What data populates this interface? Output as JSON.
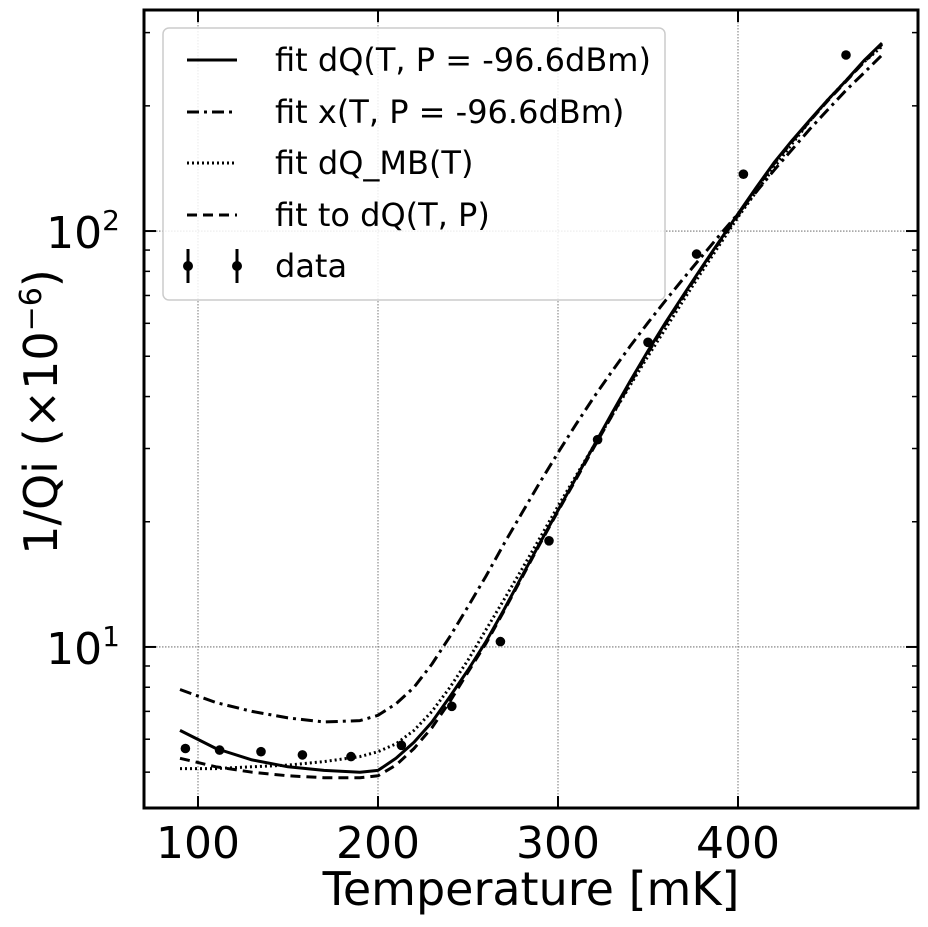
{
  "chart_data": {
    "type": "line",
    "xlabel": "Temperature [mK]",
    "ylabel_main": "1/Qi (×10",
    "ylabel_exp": "−6",
    "ylabel_close": ")",
    "yscale": "log",
    "xlim": [
      70,
      500
    ],
    "ylim": [
      4.1,
      340
    ],
    "grid": true,
    "x_ticks": [
      {
        "value": 100,
        "label": "100"
      },
      {
        "value": 200,
        "label": "200"
      },
      {
        "value": 300,
        "label": "300"
      },
      {
        "value": 400,
        "label": "400"
      }
    ],
    "y_major_ticks": [
      {
        "value": 10,
        "base": "10",
        "exp": "1"
      },
      {
        "value": 100,
        "base": "10",
        "exp": "2"
      }
    ],
    "legend_position": "upper-left",
    "series": [
      {
        "name": "fit dQ(T, P = -96.6dBm)",
        "style": "solid",
        "x": [
          90,
          110,
          130,
          150,
          170,
          190,
          200,
          210,
          220,
          230,
          240,
          250,
          260,
          270,
          280,
          290,
          300,
          310,
          320,
          330,
          340,
          350,
          360,
          370,
          380,
          390,
          400,
          410,
          420,
          430,
          440,
          450,
          460,
          470,
          480
        ],
        "y": [
          6.3,
          5.7,
          5.35,
          5.15,
          5.05,
          5.0,
          5.05,
          5.4,
          5.9,
          6.6,
          7.6,
          8.8,
          10.3,
          12.3,
          14.8,
          17.8,
          21.3,
          25.5,
          30.5,
          36.5,
          43.5,
          51.5,
          60.5,
          70.5,
          82,
          95,
          110,
          127,
          146,
          165,
          185,
          207,
          230,
          257,
          283
        ]
      },
      {
        "name": "fit x(T, P = -96.6dBm)",
        "style": "dashdot",
        "x": [
          90,
          110,
          130,
          150,
          170,
          190,
          200,
          210,
          220,
          230,
          240,
          250,
          260,
          270,
          280,
          290,
          300,
          310,
          320,
          330,
          340,
          350,
          360,
          370,
          380,
          390,
          400,
          410,
          420,
          430,
          440,
          450,
          460,
          470,
          480
        ],
        "y": [
          7.9,
          7.35,
          7.0,
          6.75,
          6.6,
          6.65,
          6.85,
          7.3,
          8.0,
          9.1,
          10.6,
          12.5,
          14.8,
          17.7,
          21.0,
          24.9,
          29.3,
          34.3,
          39.9,
          46.0,
          52.8,
          60.2,
          68.3,
          77.2,
          87,
          98,
          110,
          124,
          140,
          157,
          176,
          196,
          218,
          240,
          265
        ]
      },
      {
        "name": "fit dQ_MB(T)",
        "style": "dotted",
        "x": [
          90,
          110,
          130,
          150,
          170,
          190,
          200,
          210,
          220,
          230,
          240,
          250,
          260,
          270,
          280,
          290,
          300,
          310,
          320,
          330,
          340,
          350,
          360,
          370,
          380,
          390,
          400,
          410,
          420,
          430,
          440,
          450,
          460,
          470,
          480
        ],
        "y": [
          5.1,
          5.1,
          5.15,
          5.2,
          5.3,
          5.45,
          5.6,
          5.85,
          6.3,
          7.0,
          8.0,
          9.3,
          11.0,
          13.0,
          15.4,
          18.3,
          21.8,
          25.8,
          30.5,
          36.0,
          42.5,
          50.0,
          58.5,
          68.5,
          80,
          93,
          108,
          124,
          142,
          162,
          184,
          207,
          230,
          255,
          278
        ]
      },
      {
        "name": "fit to dQ(T, P)",
        "style": "dashed",
        "x": [
          90,
          110,
          130,
          150,
          170,
          190,
          200,
          210,
          220,
          230,
          240,
          250,
          260,
          270,
          280,
          290,
          300,
          310,
          320,
          330,
          340,
          350,
          360,
          370,
          380,
          390,
          400,
          410,
          420,
          430,
          440,
          450,
          460,
          470,
          480
        ],
        "y": [
          5.4,
          5.15,
          5.0,
          4.9,
          4.85,
          4.85,
          4.9,
          5.2,
          5.7,
          6.4,
          7.4,
          8.7,
          10.2,
          12.2,
          14.7,
          17.7,
          21.2,
          25.3,
          30.2,
          36.0,
          43.0,
          51.0,
          60.0,
          70.0,
          81.5,
          94.5,
          109,
          126,
          145,
          164,
          184,
          206,
          229,
          255,
          281
        ]
      }
    ],
    "points": {
      "name": "data",
      "x": [
        93,
        112,
        135,
        158,
        185,
        213,
        241,
        268,
        295,
        322,
        350,
        377,
        403,
        460
      ],
      "y": [
        5.7,
        5.65,
        5.6,
        5.5,
        5.45,
        5.8,
        7.2,
        10.3,
        18.0,
        31.5,
        54,
        88,
        137,
        265
      ]
    }
  }
}
